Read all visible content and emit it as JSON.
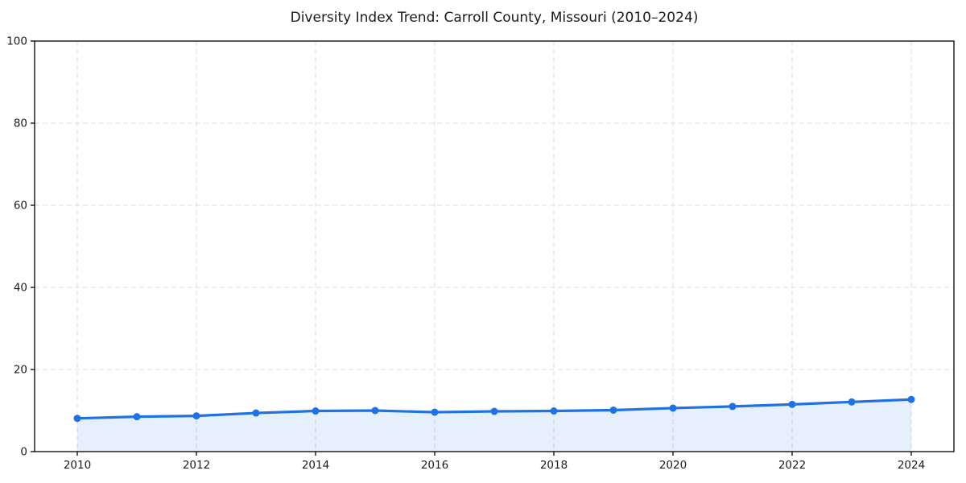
{
  "chart_data": {
    "type": "line",
    "area_fill": true,
    "markers": true,
    "title": "Diversity Index Trend: Carroll County, Missouri (2010–2024)",
    "series_name": "Diversity Index",
    "x": [
      2010,
      2011,
      2012,
      2013,
      2014,
      2015,
      2016,
      2017,
      2018,
      2019,
      2020,
      2021,
      2022,
      2023,
      2024
    ],
    "values": [
      8.1,
      8.5,
      8.7,
      9.4,
      9.9,
      10.0,
      9.6,
      9.8,
      9.9,
      10.1,
      10.6,
      11.0,
      11.5,
      12.1,
      12.7
    ],
    "xlabel": "",
    "ylabel": "",
    "xticks": [
      2010,
      2012,
      2014,
      2016,
      2018,
      2020,
      2022,
      2024
    ],
    "yticks": [
      0,
      20,
      40,
      60,
      80,
      100
    ],
    "xlim": [
      2009.3,
      2024.7
    ],
    "ylim": [
      0,
      100
    ],
    "grid": "dashed-both-axes",
    "legend_position": "none",
    "colors": {
      "line": "#1f72e5",
      "marker": "#1f72e5",
      "area_fill": "rgba(31,114,229,0.11)",
      "grid": "#dcdcdc",
      "axis": "#000000",
      "text": "#1a1a1a",
      "background": "#ffffff"
    }
  }
}
